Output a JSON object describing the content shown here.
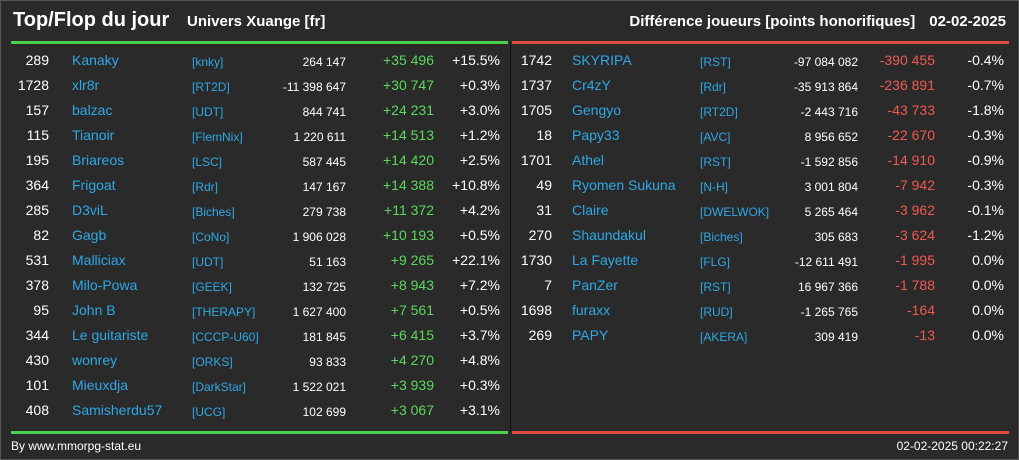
{
  "header": {
    "title": "Top/Flop du jour",
    "universe": "Univers Xuange [fr]",
    "metric": "Différence joueurs [points honorifiques]",
    "date": "02-02-2025"
  },
  "colors": {
    "positive": "#5bd85b",
    "negative": "#ef5a50",
    "link": "#2ea8e6"
  },
  "top": [
    {
      "rank": "289",
      "name": "Kanaky",
      "guild": "[knky]",
      "points": "264 147",
      "diff": "+35 496",
      "pct": "+15.5%"
    },
    {
      "rank": "1728",
      "name": "xlr8r",
      "guild": "[RT2D]",
      "points": "-11 398 647",
      "diff": "+30 747",
      "pct": "+0.3%"
    },
    {
      "rank": "157",
      "name": "balzac",
      "guild": "[UDT]",
      "points": "844 741",
      "diff": "+24 231",
      "pct": "+3.0%"
    },
    {
      "rank": "115",
      "name": "Tianoir",
      "guild": "[FlemNix]",
      "points": "1 220 611",
      "diff": "+14 513",
      "pct": "+1.2%"
    },
    {
      "rank": "195",
      "name": "Briareos",
      "guild": "[LSC]",
      "points": "587 445",
      "diff": "+14 420",
      "pct": "+2.5%"
    },
    {
      "rank": "364",
      "name": "Frigoat",
      "guild": "[Rdr]",
      "points": "147 167",
      "diff": "+14 388",
      "pct": "+10.8%"
    },
    {
      "rank": "285",
      "name": "D3viL",
      "guild": "[Biches]",
      "points": "279 738",
      "diff": "+11 372",
      "pct": "+4.2%"
    },
    {
      "rank": "82",
      "name": "Gagb",
      "guild": "[CoNo]",
      "points": "1 906 028",
      "diff": "+10 193",
      "pct": "+0.5%"
    },
    {
      "rank": "531",
      "name": "Malliciax",
      "guild": "[UDT]",
      "points": "51 163",
      "diff": "+9 265",
      "pct": "+22.1%"
    },
    {
      "rank": "378",
      "name": "Milo-Powa",
      "guild": "[GEEK]",
      "points": "132 725",
      "diff": "+8 943",
      "pct": "+7.2%"
    },
    {
      "rank": "95",
      "name": "John B",
      "guild": "[THERAPY]",
      "points": "1 627 400",
      "diff": "+7 561",
      "pct": "+0.5%"
    },
    {
      "rank": "344",
      "name": "Le guitariste",
      "guild": "[CCCP-U60]",
      "points": "181 845",
      "diff": "+6 415",
      "pct": "+3.7%"
    },
    {
      "rank": "430",
      "name": "wonrey",
      "guild": "[ORKS]",
      "points": "93 833",
      "diff": "+4 270",
      "pct": "+4.8%"
    },
    {
      "rank": "101",
      "name": "Mieuxdja",
      "guild": "[DarkStar]",
      "points": "1 522 021",
      "diff": "+3 939",
      "pct": "+0.3%"
    },
    {
      "rank": "408",
      "name": "Samisherdu57",
      "guild": "[UCG]",
      "points": "102 699",
      "diff": "+3 067",
      "pct": "+3.1%"
    }
  ],
  "flop": [
    {
      "rank": "1742",
      "name": "SKYRIPA",
      "guild": "[RST]",
      "points": "-97 084 082",
      "diff": "-390 455",
      "pct": "-0.4%"
    },
    {
      "rank": "1737",
      "name": "Cr4zY",
      "guild": "[Rdr]",
      "points": "-35 913 864",
      "diff": "-236 891",
      "pct": "-0.7%"
    },
    {
      "rank": "1705",
      "name": "Gengyo",
      "guild": "[RT2D]",
      "points": "-2 443 716",
      "diff": "-43 733",
      "pct": "-1.8%"
    },
    {
      "rank": "18",
      "name": "Papy33",
      "guild": "[AVC]",
      "points": "8 956 652",
      "diff": "-22 670",
      "pct": "-0.3%"
    },
    {
      "rank": "1701",
      "name": "Athel",
      "guild": "[RST]",
      "points": "-1 592 856",
      "diff": "-14 910",
      "pct": "-0.9%"
    },
    {
      "rank": "49",
      "name": "Ryomen Sukuna",
      "guild": "[N-H]",
      "points": "3 001 804",
      "diff": "-7 942",
      "pct": "-0.3%"
    },
    {
      "rank": "31",
      "name": "Claire",
      "guild": "[DWELWOK]",
      "points": "5 265 464",
      "diff": "-3 962",
      "pct": "-0.1%"
    },
    {
      "rank": "270",
      "name": "Shaundakul",
      "guild": "[Biches]",
      "points": "305 683",
      "diff": "-3 624",
      "pct": "-1.2%"
    },
    {
      "rank": "1730",
      "name": "La Fayette",
      "guild": "[FLG]",
      "points": "-12 611 491",
      "diff": "-1 995",
      "pct": "0.0%"
    },
    {
      "rank": "7",
      "name": "PanZer",
      "guild": "[RST]",
      "points": "16 967 366",
      "diff": "-1 788",
      "pct": "0.0%"
    },
    {
      "rank": "1698",
      "name": "furaxx",
      "guild": "[RUD]",
      "points": "-1 265 765",
      "diff": "-164",
      "pct": "0.0%"
    },
    {
      "rank": "269",
      "name": "PAPY",
      "guild": "[AKERA]",
      "points": "309 419",
      "diff": "-13",
      "pct": "0.0%"
    }
  ],
  "footer": {
    "source": "By www.mmorpg-stat.eu",
    "timestamp": "02-02-2025 00:22:27"
  }
}
